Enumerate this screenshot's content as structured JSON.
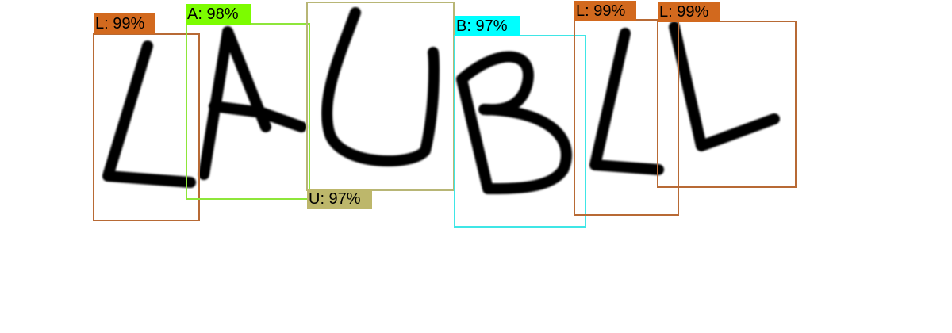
{
  "colors": {
    "background": "#ffffff",
    "ink": "#000000",
    "class_L": "#d2691e",
    "class_A": "#7cfc00",
    "class_U": "#bdb76b",
    "class_B": "#00ffff",
    "box_L": "#b86a35",
    "box_A": "#8ee63a",
    "box_U": "#b8b676",
    "box_B": "#3fe6e6"
  },
  "detections": [
    {
      "id": "det-1",
      "letter": "L",
      "text": "L: 99%",
      "confidence": 0.99
    },
    {
      "id": "det-2",
      "letter": "A",
      "text": "A: 98%",
      "confidence": 0.98
    },
    {
      "id": "det-3",
      "letter": "U",
      "text": "U: 97%",
      "confidence": 0.97
    },
    {
      "id": "det-4",
      "letter": "B",
      "text": "B: 97%",
      "confidence": 0.97
    },
    {
      "id": "det-5",
      "letter": "L",
      "text": "L: 99%",
      "confidence": 0.99
    },
    {
      "id": "det-6",
      "letter": "L",
      "text": "L: 99%",
      "confidence": 0.99
    }
  ]
}
